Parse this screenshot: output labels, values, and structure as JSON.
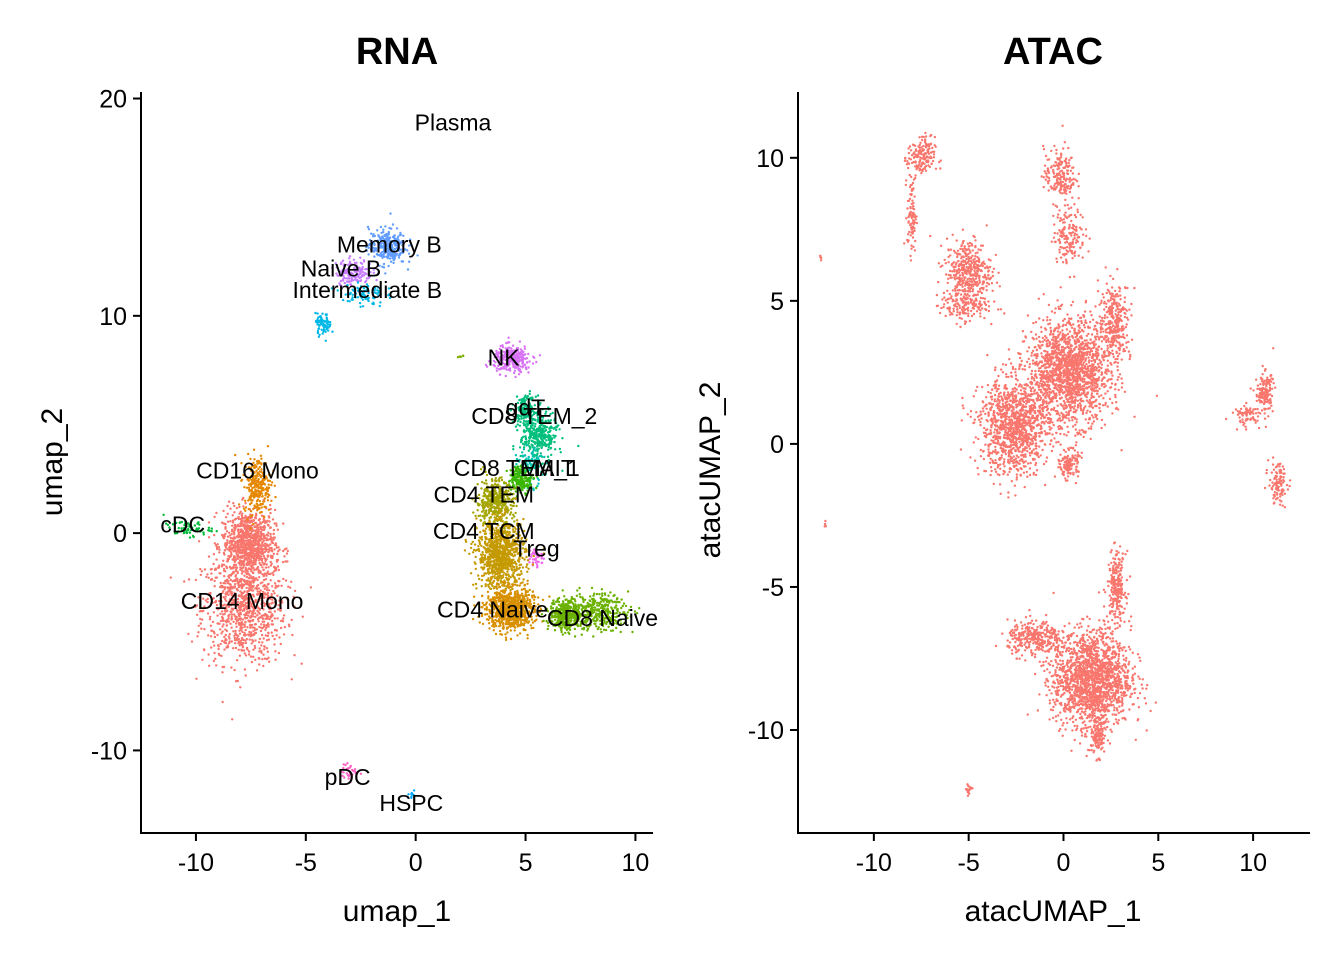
{
  "chart_data": [
    {
      "type": "scatter",
      "title": "RNA",
      "xlabel": "umap_1",
      "ylabel": "umap_2",
      "xlim": [
        -12.5,
        10.8
      ],
      "ylim": [
        -13.8,
        20.3
      ],
      "xticks": [
        -10,
        -5,
        0,
        5,
        10
      ],
      "yticks": [
        -10,
        0,
        10,
        20
      ],
      "grid": false,
      "legend": "none",
      "point_size": 1.2,
      "labels": [
        {
          "text": "Plasma",
          "x": 1.7,
          "y": 18.8
        },
        {
          "text": "Memory B",
          "x": -1.2,
          "y": 13.2
        },
        {
          "text": "Naive B",
          "x": -3.4,
          "y": 12.1
        },
        {
          "text": "Intermediate B",
          "x": -2.2,
          "y": 11.1
        },
        {
          "text": "NK",
          "x": 4.0,
          "y": 8.0
        },
        {
          "text": "gdT",
          "x": 5.0,
          "y": 5.7
        },
        {
          "text": "CD8 TEM_2",
          "x": 5.4,
          "y": 5.3
        },
        {
          "text": "CD16 Mono",
          "x": -7.2,
          "y": 2.8
        },
        {
          "text": "MAIT",
          "x": 6.0,
          "y": 2.9
        },
        {
          "text": "CD8 TEM_1",
          "x": 4.6,
          "y": 2.9
        },
        {
          "text": "CD4 TEM",
          "x": 3.1,
          "y": 1.7
        },
        {
          "text": "cDC",
          "x": -10.6,
          "y": 0.3
        },
        {
          "text": "CD4 TCM",
          "x": 3.1,
          "y": 0.0
        },
        {
          "text": "Treg",
          "x": 5.5,
          "y": -0.8
        },
        {
          "text": "CD14 Mono",
          "x": -7.9,
          "y": -3.2
        },
        {
          "text": "CD4 Naive",
          "x": 3.5,
          "y": -3.6
        },
        {
          "text": "CD8 Naive",
          "x": 8.5,
          "y": -4.0
        },
        {
          "text": "pDC",
          "x": -3.1,
          "y": -11.3
        },
        {
          "text": "HSPC",
          "x": -0.2,
          "y": -12.5
        }
      ],
      "clusters": [
        {
          "name": "CD14 Mono",
          "color": "#F8766D",
          "n": 1800,
          "blobs": [
            [
              -7.8,
              -3.5,
              1.6,
              2.1
            ],
            [
              -7.6,
              -0.5,
              1.0,
              1.3
            ]
          ]
        },
        {
          "name": "CD16 Mono",
          "color": "#E58700",
          "n": 260,
          "blobs": [
            [
              -7.2,
              2.2,
              0.5,
              1.1
            ]
          ]
        },
        {
          "name": "cDC",
          "color": "#00BA38",
          "n": 60,
          "blobs": [
            [
              -10.4,
              0.2,
              0.9,
              0.3
            ]
          ]
        },
        {
          "name": "pDC",
          "color": "#FF61C3",
          "n": 30,
          "blobs": [
            [
              -3.0,
              -11.0,
              0.3,
              0.3
            ]
          ]
        },
        {
          "name": "HSPC",
          "color": "#00A9FF",
          "n": 8,
          "blobs": [
            [
              -0.2,
              -12.0,
              0.2,
              0.3
            ]
          ]
        },
        {
          "name": "Memory B",
          "color": "#619CFF",
          "n": 260,
          "blobs": [
            [
              -1.3,
              13.2,
              0.7,
              0.7
            ]
          ]
        },
        {
          "name": "Naive B",
          "color": "#C77CFF",
          "n": 150,
          "blobs": [
            [
              -2.8,
              12.0,
              0.7,
              0.5
            ]
          ]
        },
        {
          "name": "Intermediate B",
          "color": "#00B8E7",
          "n": 160,
          "blobs": [
            [
              -2.4,
              11.0,
              0.8,
              0.5
            ],
            [
              -4.2,
              9.6,
              0.3,
              0.4
            ]
          ]
        },
        {
          "name": "Plasma",
          "color": "#7CAE00",
          "n": 6,
          "blobs": [
            [
              2.0,
              8.1,
              0.2,
              0.1
            ]
          ]
        },
        {
          "name": "NK",
          "color": "#D973F5",
          "n": 300,
          "blobs": [
            [
              4.4,
              8.0,
              0.7,
              0.5
            ]
          ]
        },
        {
          "name": "gdT",
          "color": "#00BF7D",
          "n": 150,
          "blobs": [
            [
              5.0,
              5.7,
              0.4,
              0.5
            ]
          ]
        },
        {
          "name": "CD8 TEM_2",
          "color": "#00BF7D",
          "n": 320,
          "blobs": [
            [
              5.6,
              4.5,
              0.7,
              0.9
            ]
          ]
        },
        {
          "name": "MAIT",
          "color": "#00C0AF",
          "n": 120,
          "blobs": [
            [
              5.2,
              3.0,
              0.5,
              0.7
            ]
          ]
        },
        {
          "name": "CD8 TEM_1",
          "color": "#39B600",
          "n": 180,
          "blobs": [
            [
              4.8,
              2.5,
              0.5,
              0.5
            ]
          ]
        },
        {
          "name": "CD4 TEM",
          "color": "#A3A500",
          "n": 400,
          "blobs": [
            [
              3.6,
              1.4,
              0.7,
              0.9
            ]
          ]
        },
        {
          "name": "CD4 TCM",
          "color": "#C49A00",
          "n": 900,
          "blobs": [
            [
              3.9,
              -1.0,
              0.9,
              1.3
            ]
          ]
        },
        {
          "name": "Treg",
          "color": "#F066EA",
          "n": 40,
          "blobs": [
            [
              5.5,
              -1.1,
              0.3,
              0.4
            ]
          ]
        },
        {
          "name": "CD4 Naive",
          "color": "#D89000",
          "n": 800,
          "blobs": [
            [
              4.3,
              -3.5,
              0.9,
              0.8
            ]
          ]
        },
        {
          "name": "CD8 Naive",
          "color": "#6BB100",
          "n": 700,
          "blobs": [
            [
              8.2,
              -3.6,
              1.2,
              0.7
            ],
            [
              6.8,
              -3.8,
              0.6,
              0.6
            ]
          ]
        }
      ]
    },
    {
      "type": "scatter",
      "title": "ATAC",
      "xlabel": "atacUMAP_1",
      "ylabel": "atacUMAP_2",
      "xlim": [
        -14.0,
        13.0
      ],
      "ylim": [
        -13.6,
        12.3
      ],
      "xticks": [
        -10,
        -5,
        0,
        5,
        10
      ],
      "yticks": [
        -10,
        -5,
        0,
        5,
        10
      ],
      "grid": false,
      "legend": "none",
      "point_size": 1.2,
      "color": "#F8766D",
      "clusters": [
        {
          "name": "",
          "n": 160,
          "blobs": [
            [
              -7.5,
              10.0,
              0.6,
              0.6
            ]
          ]
        },
        {
          "name": "",
          "n": 90,
          "blobs": [
            [
              -8.0,
              8.0,
              0.2,
              1.1
            ]
          ]
        },
        {
          "name": "",
          "n": 420,
          "blobs": [
            [
              -5.0,
              6.0,
              1.0,
              1.0
            ]
          ]
        },
        {
          "name": "",
          "n": 120,
          "blobs": [
            [
              -5.3,
              4.8,
              1.1,
              0.4
            ]
          ]
        },
        {
          "name": "",
          "n": 190,
          "blobs": [
            [
              -0.2,
              9.4,
              0.7,
              0.8
            ]
          ]
        },
        {
          "name": "",
          "n": 160,
          "blobs": [
            [
              0.3,
              7.3,
              0.7,
              0.8
            ]
          ]
        },
        {
          "name": "",
          "n": 1700,
          "blobs": [
            [
              0.3,
              2.5,
              1.8,
              1.5
            ]
          ]
        },
        {
          "name": "",
          "n": 300,
          "blobs": [
            [
              2.7,
              4.3,
              0.7,
              1.1
            ]
          ]
        },
        {
          "name": "",
          "n": 1100,
          "blobs": [
            [
              -2.6,
              0.6,
              1.5,
              1.4
            ]
          ]
        },
        {
          "name": "",
          "n": 130,
          "blobs": [
            [
              0.3,
              -0.7,
              0.4,
              0.4
            ]
          ]
        },
        {
          "name": "",
          "n": 140,
          "blobs": [
            [
              10.6,
              1.8,
              0.4,
              0.6
            ]
          ]
        },
        {
          "name": "",
          "n": 70,
          "blobs": [
            [
              9.7,
              1.0,
              0.7,
              0.3
            ]
          ]
        },
        {
          "name": "",
          "n": 110,
          "blobs": [
            [
              11.3,
              -1.4,
              0.4,
              0.6
            ]
          ]
        },
        {
          "name": "",
          "n": 5,
          "blobs": [
            [
              -12.8,
              6.5,
              0.06,
              0.1
            ]
          ]
        },
        {
          "name": "",
          "n": 5,
          "blobs": [
            [
              -12.6,
              -2.8,
              0.06,
              0.1
            ]
          ]
        },
        {
          "name": "",
          "n": 1700,
          "blobs": [
            [
              1.5,
              -8.2,
              1.7,
              1.4
            ]
          ]
        },
        {
          "name": "",
          "n": 300,
          "blobs": [
            [
              -1.5,
              -6.8,
              1.2,
              0.5
            ]
          ]
        },
        {
          "name": "",
          "n": 220,
          "blobs": [
            [
              2.8,
              -5.0,
              0.4,
              1.0
            ]
          ]
        },
        {
          "name": "",
          "n": 120,
          "blobs": [
            [
              1.8,
              -10.2,
              0.4,
              0.6
            ]
          ]
        },
        {
          "name": "",
          "n": 20,
          "blobs": [
            [
              -5.0,
              -12.1,
              0.15,
              0.2
            ]
          ]
        }
      ]
    }
  ]
}
